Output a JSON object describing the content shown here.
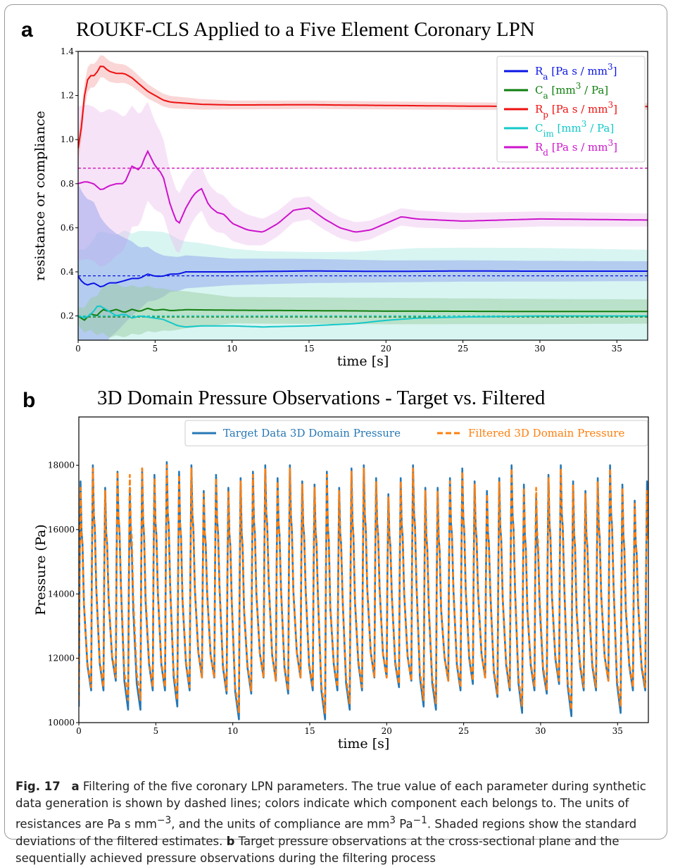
{
  "panel_a": {
    "letter": "a",
    "title": "ROUKF-CLS Applied to a Five Element Coronary LPN"
  },
  "panel_b": {
    "letter": "b",
    "title": "3D Domain Pressure Observations - Target vs. Filtered"
  },
  "caption": {
    "fig_label": "Fig. 17",
    "a_letter": "a",
    "a_text": "Filtering of the five coronary LPN parameters. The true value of each parameter during synthetic data generation is shown by dashed lines; colors indicate which component each belongs to. The units of resistances are Pa s mm",
    "sup1": "−3",
    "mid1": ", and the units of compliance are mm",
    "sup2": "3",
    "mid2": " Pa",
    "sup3": "−1",
    "mid3": ". Shaded regions show the standard deviations of the filtered estimates. ",
    "b_letter": "b",
    "b_text": "Target pressure observations at the cross-sectional plane and the sequentially achieved pressure observations during the filtering process"
  },
  "chart_data": [
    {
      "type": "line",
      "title": "ROUKF-CLS Applied to a Five Element Coronary LPN",
      "xlabel": "time [s]",
      "ylabel": "resistance or compliance",
      "xlim": [
        0,
        37
      ],
      "ylim": [
        0.09,
        1.4
      ],
      "xticks": [
        0,
        5,
        10,
        15,
        20,
        25,
        30,
        35
      ],
      "yticks": [
        0.2,
        0.4,
        0.6,
        0.8,
        1.0,
        1.2,
        1.4
      ],
      "legend_position": "top-right",
      "grid": false,
      "series": [
        {
          "name": "R_a [Pa s / mm^3]",
          "label": {
            "base": "R",
            "sub": "a",
            "pre": " [Pa s / mm",
            "sup": "3",
            "post": "]"
          },
          "color": "#0a14e6",
          "band_color": "#8a9bea",
          "true_value": 0.382,
          "points": [
            [
              0,
              0.38
            ],
            [
              0.3,
              0.35
            ],
            [
              0.6,
              0.34
            ],
            [
              1,
              0.35
            ],
            [
              1.5,
              0.33
            ],
            [
              2,
              0.35
            ],
            [
              2.5,
              0.35
            ],
            [
              3,
              0.36
            ],
            [
              3.5,
              0.37
            ],
            [
              4,
              0.37
            ],
            [
              4.5,
              0.39
            ],
            [
              5,
              0.38
            ],
            [
              5.5,
              0.38
            ],
            [
              6,
              0.39
            ],
            [
              6.5,
              0.39
            ],
            [
              7,
              0.4
            ],
            [
              8,
              0.4
            ],
            [
              10,
              0.4
            ],
            [
              15,
              0.404
            ],
            [
              20,
              0.402
            ],
            [
              25,
              0.404
            ],
            [
              30,
              0.403
            ],
            [
              37,
              0.403
            ]
          ],
          "sigma": [
            [
              0,
              0.42
            ],
            [
              1,
              0.37
            ],
            [
              2,
              0.25
            ],
            [
              4,
              0.14
            ],
            [
              6,
              0.08
            ],
            [
              10,
              0.06
            ],
            [
              20,
              0.05
            ],
            [
              37,
              0.045
            ]
          ]
        },
        {
          "name": "C_a [mm^3 / Pa]",
          "label": {
            "base": "C",
            "sub": "a",
            "pre": " [mm",
            "sup": "3",
            "post": " / Pa]"
          },
          "color": "#0e7e0e",
          "band_color": "#97c997",
          "true_value": 0.195,
          "points": [
            [
              0,
              0.2
            ],
            [
              0.4,
              0.18
            ],
            [
              0.8,
              0.21
            ],
            [
              1.2,
              0.2
            ],
            [
              1.6,
              0.23
            ],
            [
              2,
              0.22
            ],
            [
              2.5,
              0.23
            ],
            [
              3,
              0.215
            ],
            [
              3.5,
              0.23
            ],
            [
              4,
              0.22
            ],
            [
              4.5,
              0.235
            ],
            [
              5,
              0.225
            ],
            [
              5.5,
              0.23
            ],
            [
              6,
              0.224
            ],
            [
              7,
              0.228
            ],
            [
              10,
              0.226
            ],
            [
              15,
              0.224
            ],
            [
              20,
              0.222
            ],
            [
              30,
              0.22
            ],
            [
              37,
              0.22
            ]
          ],
          "sigma": [
            [
              0,
              0.04
            ],
            [
              2,
              0.12
            ],
            [
              5,
              0.1
            ],
            [
              10,
              0.06
            ],
            [
              20,
              0.06
            ],
            [
              37,
              0.055
            ]
          ]
        },
        {
          "name": "R_p [Pa s / mm^3]",
          "label": {
            "base": "R",
            "sub": "p",
            "pre": " [Pa s / mm",
            "sup": "3",
            "post": "]"
          },
          "color": "#ee1010",
          "band_color": "#f4a3a3",
          "true_value": 0.87,
          "points": [
            [
              0,
              0.96
            ],
            [
              0.2,
              1.05
            ],
            [
              0.5,
              1.26
            ],
            [
              0.8,
              1.29
            ],
            [
              1.1,
              1.29
            ],
            [
              1.5,
              1.34
            ],
            [
              2,
              1.31
            ],
            [
              2.5,
              1.3
            ],
            [
              3,
              1.3
            ],
            [
              3.5,
              1.28
            ],
            [
              4,
              1.25
            ],
            [
              4.5,
              1.22
            ],
            [
              5,
              1.2
            ],
            [
              5.5,
              1.18
            ],
            [
              6,
              1.17
            ],
            [
              7,
              1.165
            ],
            [
              8,
              1.16
            ],
            [
              10,
              1.157
            ],
            [
              15,
              1.158
            ],
            [
              20,
              1.155
            ],
            [
              25,
              1.152
            ],
            [
              30,
              1.15
            ],
            [
              37,
              1.15
            ]
          ],
          "sigma": [
            [
              0,
              0.06
            ],
            [
              1.5,
              0.05
            ],
            [
              5,
              0.03
            ],
            [
              10,
              0.02
            ],
            [
              37,
              0.015
            ]
          ]
        },
        {
          "name": "C_im [mm^3 / Pa]",
          "label": {
            "base": "C",
            "sub": "im",
            "pre": " [mm",
            "sup": "3",
            "post": " / Pa]"
          },
          "color": "#14c8c8",
          "band_color": "#a9e8e2",
          "true_value": 0.2,
          "points": [
            [
              0,
              0.2
            ],
            [
              0.5,
              0.19
            ],
            [
              1,
              0.22
            ],
            [
              1.3,
              0.25
            ],
            [
              1.8,
              0.23
            ],
            [
              2.5,
              0.2
            ],
            [
              3,
              0.21
            ],
            [
              3.5,
              0.19
            ],
            [
              4,
              0.2
            ],
            [
              5,
              0.19
            ],
            [
              5.5,
              0.185
            ],
            [
              6,
              0.17
            ],
            [
              6.5,
              0.155
            ],
            [
              7,
              0.15
            ],
            [
              8,
              0.155
            ],
            [
              10,
              0.155
            ],
            [
              12,
              0.15
            ],
            [
              15,
              0.155
            ],
            [
              18,
              0.165
            ],
            [
              20,
              0.18
            ],
            [
              22,
              0.19
            ],
            [
              25,
              0.195
            ],
            [
              30,
              0.2
            ],
            [
              37,
              0.2
            ]
          ],
          "sigma": [
            [
              0,
              0.3
            ],
            [
              3,
              0.38
            ],
            [
              6,
              0.4
            ],
            [
              10,
              0.35
            ],
            [
              20,
              0.32
            ],
            [
              37,
              0.3
            ]
          ]
        },
        {
          "name": "R_d [Pa s / mm^3]",
          "label": {
            "base": "R",
            "sub": "d",
            "pre": " [Pa s / mm",
            "sup": "3",
            "post": "]"
          },
          "color": "#cc14cc",
          "band_color": "#eec1ee",
          "true_value": 0.87,
          "points": [
            [
              0,
              0.8
            ],
            [
              0.5,
              0.81
            ],
            [
              1,
              0.8
            ],
            [
              1.5,
              0.77
            ],
            [
              2,
              0.79
            ],
            [
              2.5,
              0.8
            ],
            [
              3,
              0.8
            ],
            [
              3.5,
              0.88
            ],
            [
              4,
              0.86
            ],
            [
              4.5,
              0.95
            ],
            [
              5,
              0.88
            ],
            [
              5.5,
              0.84
            ],
            [
              6,
              0.7
            ],
            [
              6.5,
              0.61
            ],
            [
              7,
              0.69
            ],
            [
              7.5,
              0.75
            ],
            [
              8,
              0.78
            ],
            [
              8.5,
              0.7
            ],
            [
              9,
              0.67
            ],
            [
              9.5,
              0.66
            ],
            [
              10,
              0.62
            ],
            [
              11,
              0.59
            ],
            [
              12,
              0.58
            ],
            [
              13,
              0.62
            ],
            [
              14,
              0.68
            ],
            [
              15,
              0.69
            ],
            [
              16,
              0.64
            ],
            [
              17,
              0.6
            ],
            [
              18,
              0.58
            ],
            [
              19,
              0.59
            ],
            [
              20,
              0.62
            ],
            [
              21,
              0.65
            ],
            [
              22,
              0.64
            ],
            [
              25,
              0.63
            ],
            [
              30,
              0.64
            ],
            [
              37,
              0.635
            ]
          ],
          "sigma": [
            [
              0,
              0.35
            ],
            [
              2,
              0.35
            ],
            [
              4,
              0.25
            ],
            [
              6,
              0.15
            ],
            [
              8,
              0.1
            ],
            [
              12,
              0.06
            ],
            [
              20,
              0.04
            ],
            [
              37,
              0.03
            ]
          ]
        }
      ]
    },
    {
      "type": "line",
      "title": "3D Domain Pressure Observations - Target vs. Filtered",
      "xlabel": "time [s]",
      "ylabel": "Pressure (Pa)",
      "xlim": [
        0,
        37
      ],
      "ylim": [
        10000,
        19500
      ],
      "xticks": [
        0,
        5,
        10,
        15,
        20,
        25,
        30,
        35
      ],
      "yticks": [
        10000,
        12000,
        14000,
        16000,
        18000
      ],
      "legend_position": "top-center",
      "grid": false,
      "cycle_period_s": 0.8,
      "series": [
        {
          "name": "Target Data 3D Domain Pressure",
          "color": "#2778b4",
          "dash": "solid",
          "peaks": [
            17500,
            18000,
            17300,
            17800,
            17300,
            17900,
            17700,
            18100,
            17800,
            18000,
            17200,
            17700,
            17300,
            17600,
            17800,
            18000,
            17600,
            18000,
            17500,
            17400,
            17800,
            17300,
            17900,
            18000,
            17600,
            17100,
            17600,
            18000,
            17300,
            17300,
            17600,
            17900,
            17500,
            17200,
            17600,
            18000,
            17400,
            17000,
            17700,
            18000,
            17500,
            17200,
            17600,
            18000,
            17400,
            16900,
            17500
          ],
          "troughs": [
            10500,
            11000,
            11000,
            11300,
            10400,
            10400,
            11000,
            11000,
            10500,
            11000,
            11400,
            11400,
            10900,
            10100,
            10900,
            11400,
            11300,
            10900,
            11400,
            11000,
            10100,
            11000,
            10400,
            11000,
            11400,
            11400,
            11100,
            11300,
            10500,
            10400,
            11300,
            11000,
            11200,
            11400,
            10800,
            11000,
            10300,
            11000,
            10900,
            11200,
            10200,
            11000,
            11000,
            11300,
            10300,
            11000,
            11000
          ]
        },
        {
          "name": "Filtered 3D Domain Pressure",
          "color": "#ff7f0e",
          "dash": "dashed",
          "peaks": [
            17300,
            17900,
            17200,
            17800,
            17700,
            17900,
            17600,
            18000,
            17700,
            17900,
            17100,
            17600,
            17200,
            17500,
            17700,
            17900,
            17500,
            17900,
            17400,
            17300,
            17700,
            17200,
            17800,
            17900,
            17500,
            17000,
            17500,
            17900,
            17200,
            17200,
            17500,
            17800,
            17400,
            17100,
            17500,
            17900,
            17300,
            17300,
            17600,
            17900,
            17400,
            17100,
            17500,
            17900,
            17300,
            16800,
            17200
          ],
          "troughs": [
            10700,
            11100,
            11100,
            11400,
            10700,
            10700,
            11100,
            11100,
            10700,
            11100,
            11400,
            11400,
            11000,
            10300,
            11000,
            11400,
            11300,
            11000,
            11400,
            11100,
            10300,
            11100,
            10600,
            11100,
            11400,
            11400,
            11200,
            11300,
            10700,
            10600,
            11300,
            11100,
            11300,
            11400,
            10900,
            11100,
            10500,
            11100,
            11000,
            11300,
            10400,
            11100,
            11100,
            11300,
            10500,
            11100,
            11100
          ]
        }
      ]
    }
  ]
}
